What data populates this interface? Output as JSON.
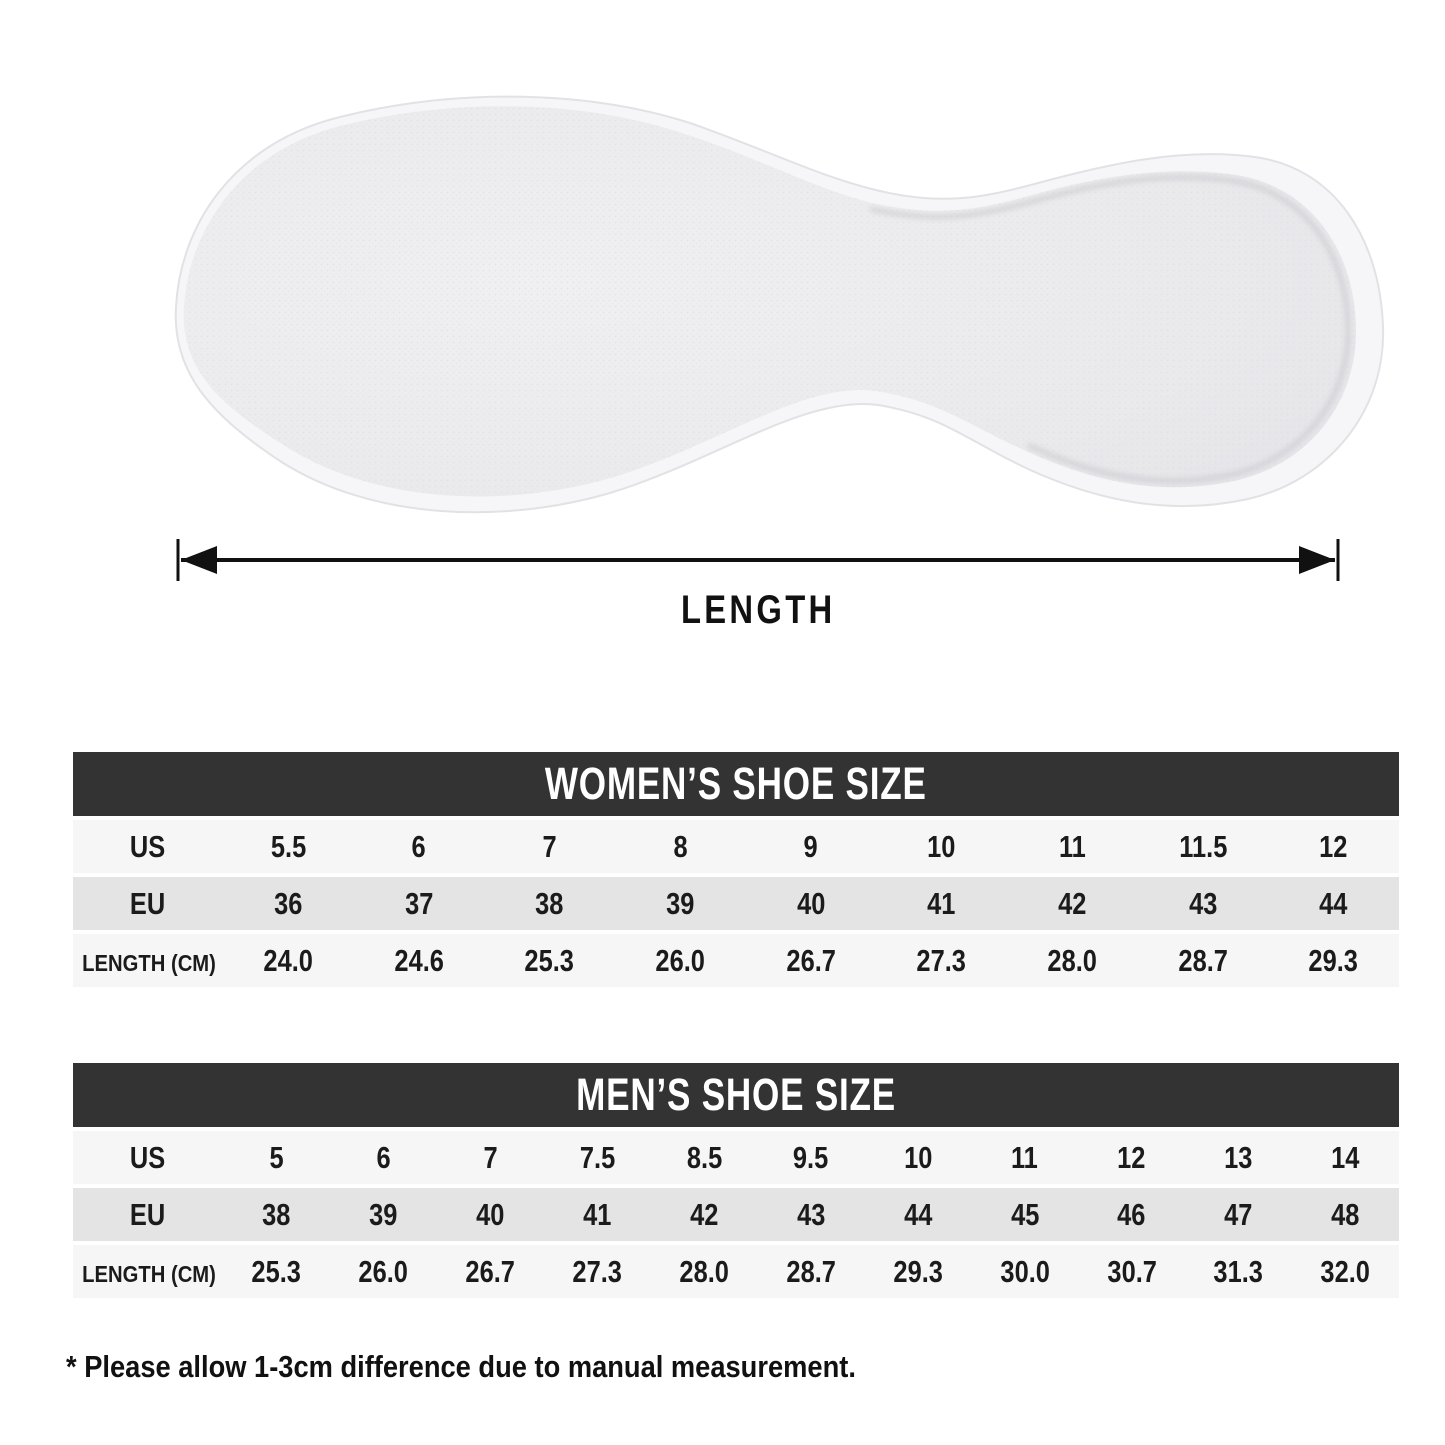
{
  "insole": {
    "name": "insole-top-view"
  },
  "measurement": {
    "label": "LENGTH"
  },
  "chart_data": [
    {
      "type": "table",
      "title": "WOMEN’S SHOE SIZE",
      "rows": [
        {
          "label": "US",
          "values": [
            "5.5",
            "6",
            "7",
            "8",
            "9",
            "10",
            "11",
            "11.5",
            "12"
          ]
        },
        {
          "label": "EU",
          "values": [
            "36",
            "37",
            "38",
            "39",
            "40",
            "41",
            "42",
            "43",
            "44"
          ]
        },
        {
          "label": "LENGTH (CM)",
          "values": [
            "24.0",
            "24.6",
            "25.3",
            "26.0",
            "26.7",
            "27.3",
            "28.0",
            "28.7",
            "29.3"
          ]
        }
      ]
    },
    {
      "type": "table",
      "title": "MEN’S SHOE SIZE",
      "rows": [
        {
          "label": "US",
          "values": [
            "5",
            "6",
            "7",
            "7.5",
            "8.5",
            "9.5",
            "10",
            "11",
            "12",
            "13",
            "14"
          ]
        },
        {
          "label": "EU",
          "values": [
            "38",
            "39",
            "40",
            "41",
            "42",
            "43",
            "44",
            "45",
            "46",
            "47",
            "48"
          ]
        },
        {
          "label": "LENGTH (CM)",
          "values": [
            "25.3",
            "26.0",
            "26.7",
            "27.3",
            "28.0",
            "28.7",
            "29.3",
            "30.0",
            "30.7",
            "31.3",
            "32.0"
          ]
        }
      ]
    }
  ],
  "footnote": "* Please allow 1-3cm difference due to manual measurement.",
  "colors": {
    "header_bg": "#333333",
    "header_text": "#ffffff",
    "row_light": "#f6f6f6",
    "row_alt": "#e4e4e4",
    "text": "#1b1b1b",
    "arrow": "#111111"
  }
}
